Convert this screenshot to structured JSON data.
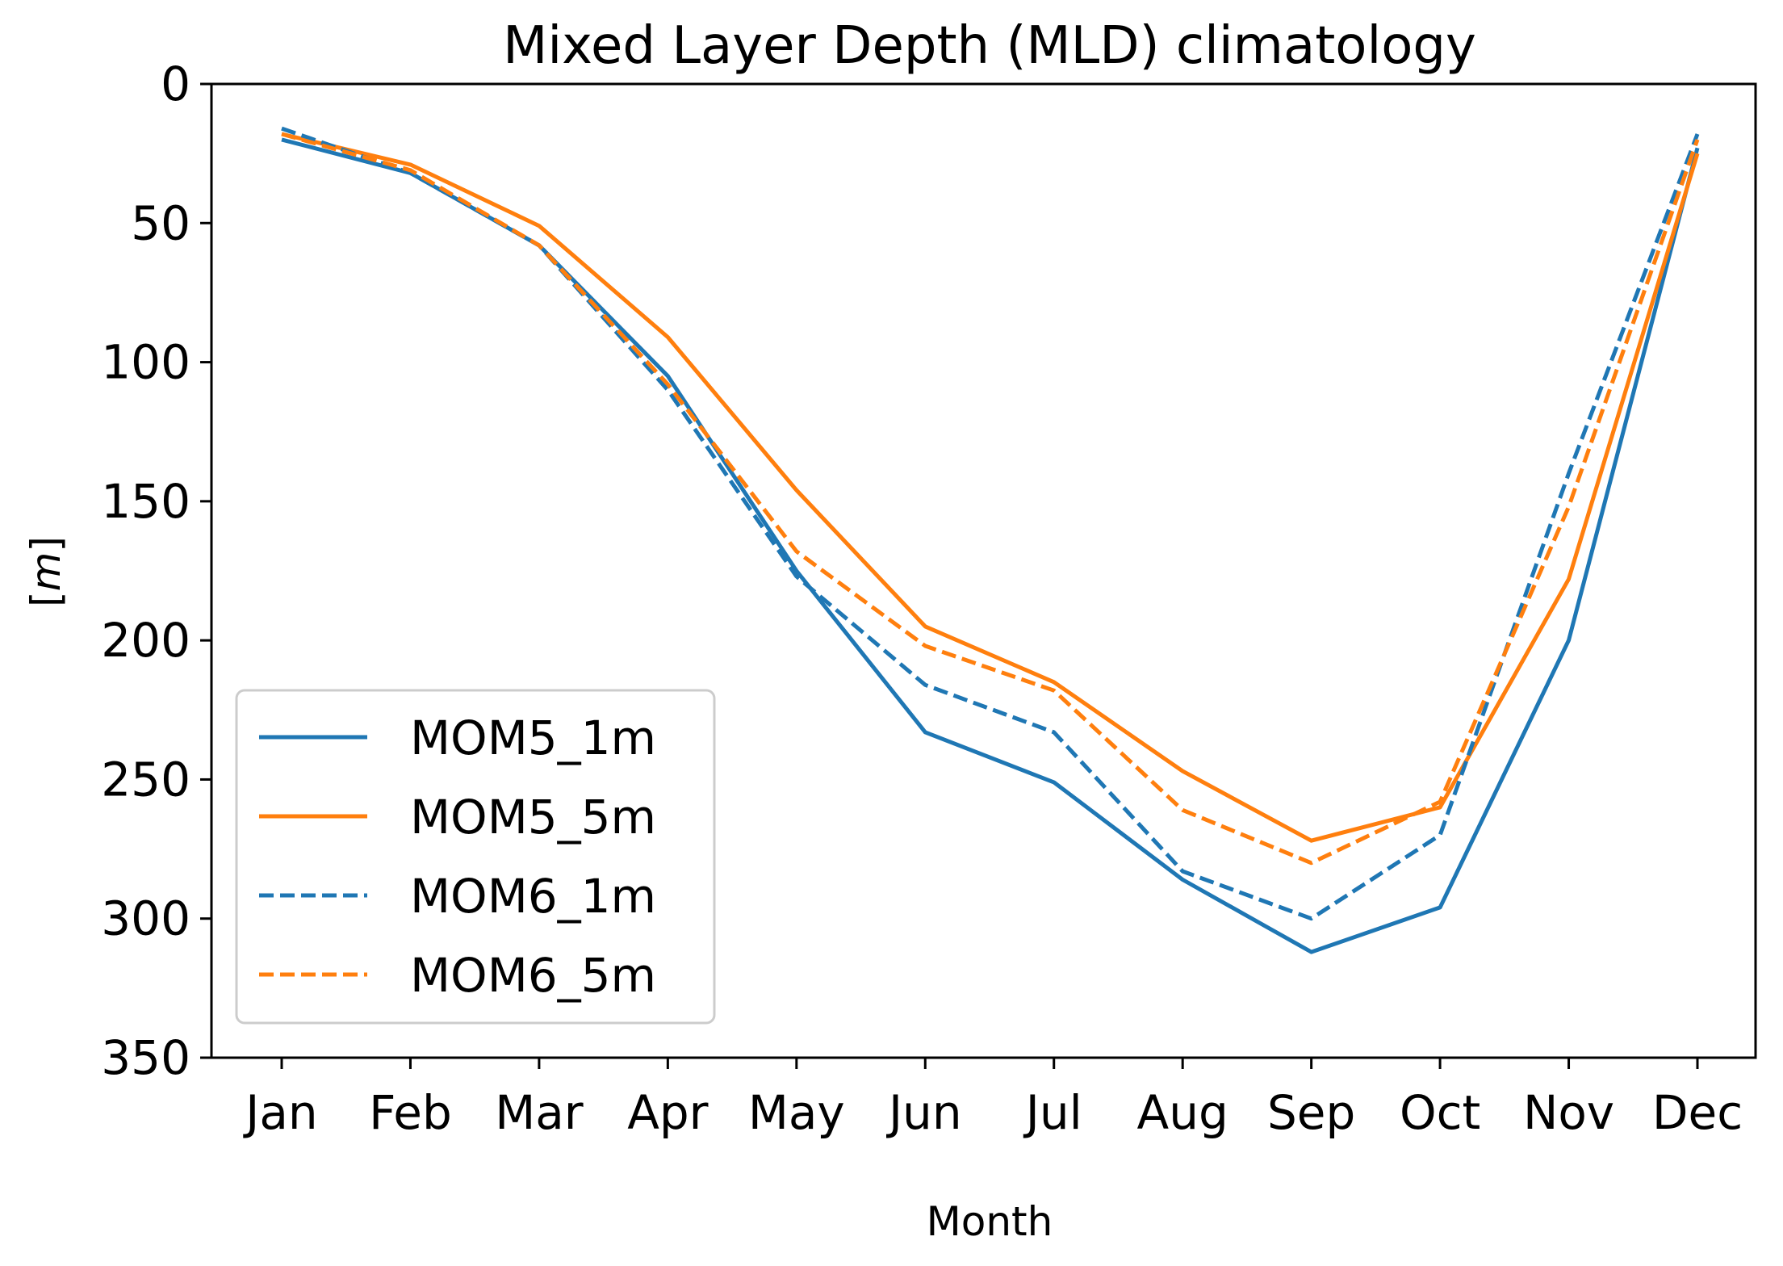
{
  "chart_data": {
    "type": "line",
    "title": "Mixed Layer Depth (MLD) climatology",
    "xlabel": "Month",
    "ylabel_prefix": "[",
    "ylabel_unit": "m",
    "ylabel_suffix": "]",
    "categories": [
      "Jan",
      "Feb",
      "Mar",
      "Apr",
      "May",
      "Jun",
      "Jul",
      "Aug",
      "Sep",
      "Oct",
      "Nov",
      "Dec"
    ],
    "ylim": [
      0,
      350
    ],
    "y_inverted": true,
    "yticks": [
      0,
      50,
      100,
      150,
      200,
      250,
      300,
      350
    ],
    "grid": false,
    "legend_position": "lower-left",
    "series": [
      {
        "name": "MOM5_1m",
        "color": "#1f77b4",
        "dashed": false,
        "values": [
          20,
          32,
          58,
          105,
          175,
          233,
          251,
          286,
          312,
          296,
          200,
          23
        ]
      },
      {
        "name": "MOM5_5m",
        "color": "#ff7f0e",
        "dashed": false,
        "values": [
          18,
          29,
          51,
          91,
          146,
          195,
          215,
          247,
          272,
          260,
          178,
          25
        ]
      },
      {
        "name": "MOM6_1m",
        "color": "#1f77b4",
        "dashed": true,
        "values": [
          16,
          32,
          58,
          110,
          177,
          216,
          233,
          283,
          300,
          270,
          140,
          18
        ]
      },
      {
        "name": "MOM6_5m",
        "color": "#ff7f0e",
        "dashed": true,
        "values": [
          18,
          31,
          58,
          108,
          168,
          202,
          218,
          261,
          280,
          258,
          152,
          20
        ]
      }
    ]
  }
}
